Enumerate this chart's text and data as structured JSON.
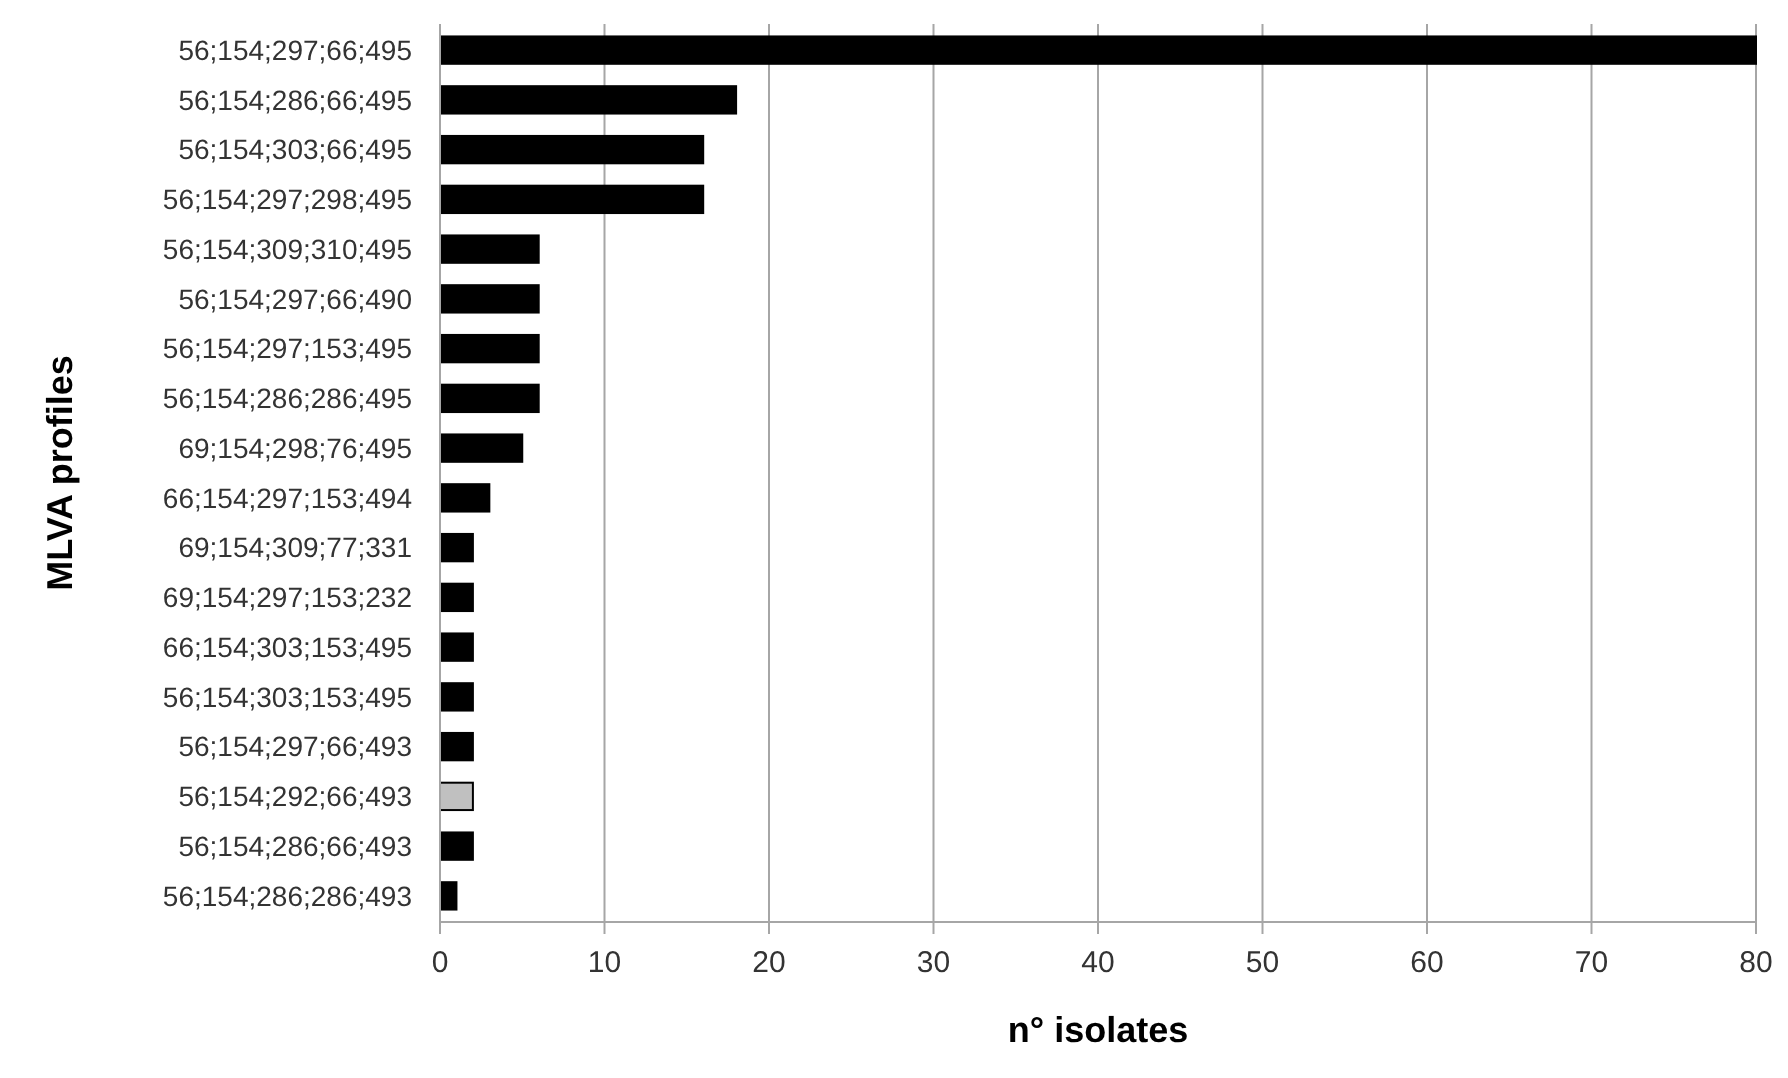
{
  "chart_data": {
    "type": "bar",
    "orientation": "horizontal",
    "xlabel": "n° isolates",
    "ylabel": "MLVA profiles",
    "categories": [
      "56;154;297;66;495",
      "56;154;286;66;495",
      "56;154;303;66;495",
      "56;154;297;298;495",
      "56;154;309;310;495",
      "56;154;297;66;490",
      "56;154;297;153;495",
      "56;154;286;286;495",
      "69;154;298;76;495",
      "66;154;297;153;494",
      "69;154;309;77;331",
      "69;154;297;153;232",
      "66;154;303;153;495",
      "56;154;303;153;495",
      "56;154;297;66;493",
      "56;154;292;66;493",
      "56;154;286;66;493",
      "56;154;286;286;493"
    ],
    "values": [
      80,
      18,
      16,
      16,
      6,
      6,
      6,
      6,
      5,
      3,
      2,
      2,
      2,
      2,
      2,
      2,
      2,
      1
    ],
    "colors": [
      "#000000",
      "#000000",
      "#000000",
      "#000000",
      "#000000",
      "#000000",
      "#000000",
      "#000000",
      "#000000",
      "#000000",
      "#000000",
      "#000000",
      "#000000",
      "#000000",
      "#000000",
      "#c0c0c0",
      "#000000",
      "#000000"
    ],
    "xlim": [
      0,
      80
    ],
    "xticks": [
      0,
      10,
      20,
      30,
      40,
      50,
      60,
      70,
      80
    ],
    "grid": "x"
  }
}
